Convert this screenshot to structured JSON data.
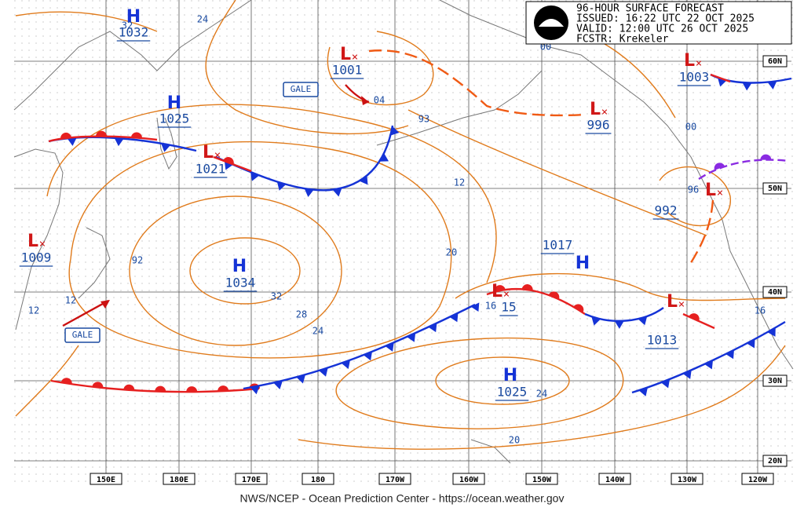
{
  "header": {
    "lines": [
      "96-HOUR SURFACE FORECAST",
      "ISSUED: 16:22 UTC 22 OCT 2025",
      "VALID:  12:00 UTC 26 OCT 2025",
      "FCSTR:  Krekeler"
    ]
  },
  "footer": "NWS/NCEP - Ocean Prediction Center - https://ocean.weather.gov",
  "lon_labels": [
    "150E",
    "180E",
    "170E",
    "180",
    "170W",
    "160W",
    "150W",
    "140W",
    "130W",
    "120W"
  ],
  "lat_labels": [
    "60N",
    "50N",
    "40N",
    "30N",
    "20N"
  ],
  "pressure_centers": [
    {
      "symbol": "H",
      "value": "1032"
    },
    {
      "symbol": "H",
      "value": "1025"
    },
    {
      "symbol": "L",
      "value": "1001"
    },
    {
      "symbol": "L",
      "value": "996"
    },
    {
      "symbol": "L",
      "value": "1003"
    },
    {
      "symbol": "L",
      "value": "1021"
    },
    {
      "symbol": "L",
      "value": "1009"
    },
    {
      "symbol": "H",
      "value": "1034"
    },
    {
      "symbol": "H",
      "value": "1017"
    },
    {
      "symbol": "L",
      "value": "15"
    },
    {
      "symbol": "L",
      "value": "1013"
    },
    {
      "symbol": "H",
      "value": "1025"
    },
    {
      "symbol": "L",
      "value": "992"
    }
  ],
  "isobar_labels": [
    "24",
    "32",
    "04",
    "00",
    "00",
    "93",
    "12",
    "96",
    "92",
    "20",
    "32",
    "28",
    "24",
    "16",
    "16",
    "12",
    "12",
    "24",
    "20"
  ],
  "gale_labels": [
    "GALE",
    "GALE"
  ]
}
